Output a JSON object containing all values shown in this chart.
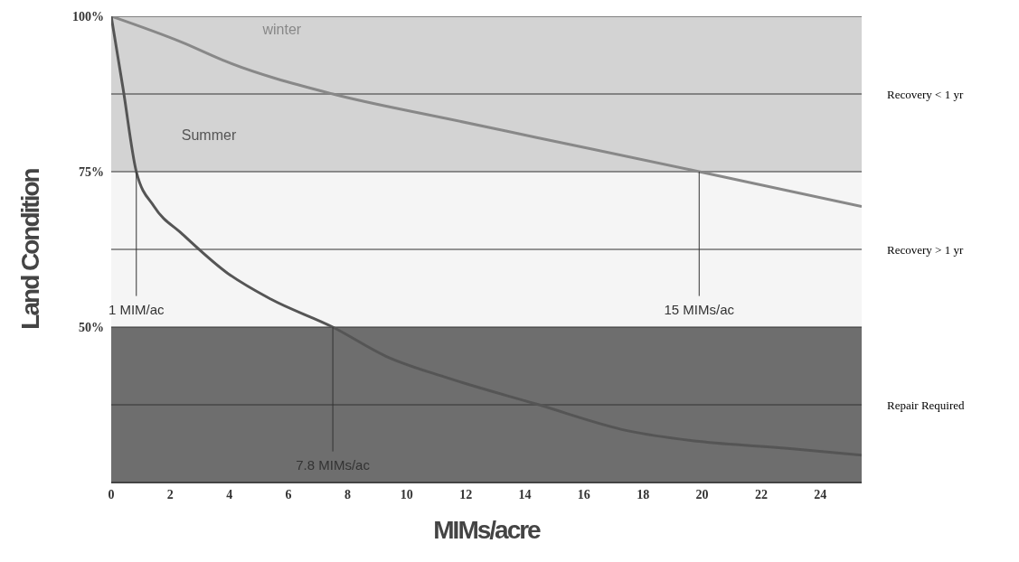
{
  "chart_data": {
    "type": "line",
    "xlabel": "MIMs/acre",
    "ylabel": "Land Condition",
    "xlim": [
      0,
      25.4
    ],
    "xticks": [
      0,
      2,
      4,
      6,
      8,
      10,
      12,
      14,
      16,
      18,
      20,
      22,
      24
    ],
    "ylim": [
      25,
      100
    ],
    "yticks": [
      {
        "value": 37.5,
        "label": null
      },
      {
        "value": 50,
        "label": "50%"
      },
      {
        "value": 62.5,
        "label": null
      },
      {
        "value": 75,
        "label": "75%"
      },
      {
        "value": 87.5,
        "label": null
      },
      {
        "value": 100,
        "label": "100%"
      }
    ],
    "grid": "y",
    "marker": "none",
    "line_style": "solid",
    "series": [
      {
        "name": "winter",
        "color": "#888888",
        "x": [
          0,
          2.4,
          3.9,
          7.5,
          11.4,
          14.4,
          19.9,
          25.4
        ],
        "values": [
          100,
          95.8,
          92.7,
          87.5,
          83.5,
          80.5,
          75,
          69.4
        ]
      },
      {
        "name": "Summer",
        "color": "#555555",
        "x": [
          0,
          0.4,
          0.85,
          1.45,
          2.4,
          3.9,
          5.4,
          7.5,
          9.3,
          11.4,
          14.4,
          17.5,
          19.9,
          22.9,
          25.4
        ],
        "values": [
          100,
          88.4,
          75,
          69.4,
          65,
          58.8,
          54.5,
          50,
          45.3,
          41.8,
          37.6,
          33.3,
          31.6,
          30.5,
          29.4
        ]
      }
    ],
    "bands": [
      {
        "axis": "y",
        "from": 75,
        "to": 100,
        "label": "Recovery < 1 yr",
        "color": "#d3d3d3"
      },
      {
        "axis": "y",
        "from": 50,
        "to": 75,
        "label": "Recovery > 1 yr",
        "color": "#f5f5f5"
      },
      {
        "axis": "y",
        "from": 25,
        "to": 50,
        "label": "Repair Required",
        "color": "#6e6e6e"
      }
    ],
    "annotations": [
      {
        "text": "1 MIM/ac",
        "x": 0.85,
        "y": 75
      },
      {
        "text": "7.8 MIMs/ac",
        "x": 7.5,
        "y": 50
      },
      {
        "text": "15 MIMs/ac",
        "x": 19.9,
        "y": 75
      }
    ]
  }
}
